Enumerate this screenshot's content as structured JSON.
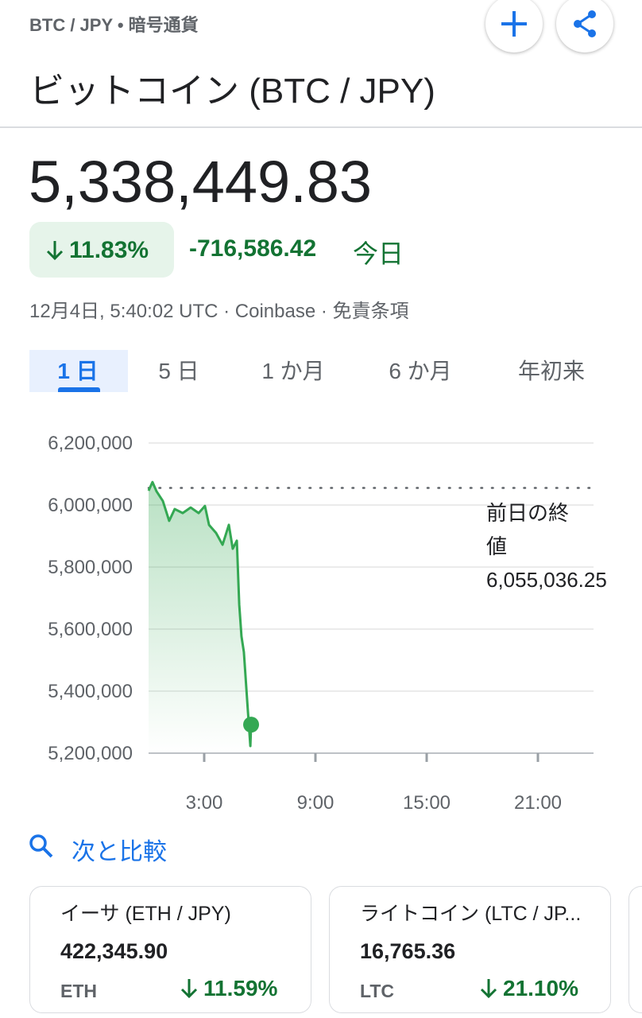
{
  "header": {
    "breadcrumb": "BTC / JPY • 暗号通貨",
    "title": "ビットコイン (BTC / JPY)"
  },
  "quote": {
    "price": "5,338,449.83",
    "change_percent": "11.83%",
    "change": "-716,586.42",
    "change_period": "今日",
    "timestamp": "12月4日, 5:40:02 UTC · Coinbase · 免責条項"
  },
  "tabs": [
    "1 日",
    "5 日",
    "1 か月",
    "6 か月",
    "年初来"
  ],
  "chart_data": {
    "type": "line",
    "color": "#34a853",
    "x": [
      0,
      0.21,
      0.43,
      0.77,
      1.11,
      1.41,
      1.84,
      2.27,
      2.7,
      3.04,
      3.26,
      3.64,
      3.99,
      4.33,
      4.54,
      4.76,
      4.89,
      5.01,
      5.14,
      5.36,
      5.49,
      5.53
    ],
    "values": [
      6046000,
      6074000,
      6044000,
      6013000,
      5949000,
      5987000,
      5974000,
      5992000,
      5974000,
      5997000,
      5936000,
      5910000,
      5872000,
      5936000,
      5859000,
      5885000,
      5679000,
      5577000,
      5526000,
      5333000,
      5223000,
      5292000
    ],
    "xlim": [
      0,
      24
    ],
    "xticks": [
      {
        "value": 3,
        "label": "3:00"
      },
      {
        "value": 9,
        "label": "9:00"
      },
      {
        "value": 15,
        "label": "15:00"
      },
      {
        "value": 21,
        "label": "21:00"
      }
    ],
    "ylim": [
      5200000,
      6200000
    ],
    "yticks": [
      {
        "value": 5200000,
        "label": "5,200,000"
      },
      {
        "value": 5400000,
        "label": "5,400,000"
      },
      {
        "value": 5600000,
        "label": "5,600,000"
      },
      {
        "value": 5800000,
        "label": "5,800,000"
      },
      {
        "value": 6000000,
        "label": "6,000,000"
      },
      {
        "value": 6200000,
        "label": "6,200,000"
      }
    ],
    "grid": true,
    "reference": {
      "label": "前日の終値",
      "value": {
        "value": 6055036.25,
        "label": "6,055,036.25"
      }
    }
  },
  "compare": {
    "title": "次と比較",
    "cards": [
      {
        "name": "イーサ (ETH / JPY)",
        "price": "422,345.90",
        "symbol": "ETH",
        "change": "11.59%"
      },
      {
        "name": "ライトコイン (LTC / JP...",
        "price": "16,765.36",
        "symbol": "LTC",
        "change": "21.10%"
      }
    ]
  }
}
